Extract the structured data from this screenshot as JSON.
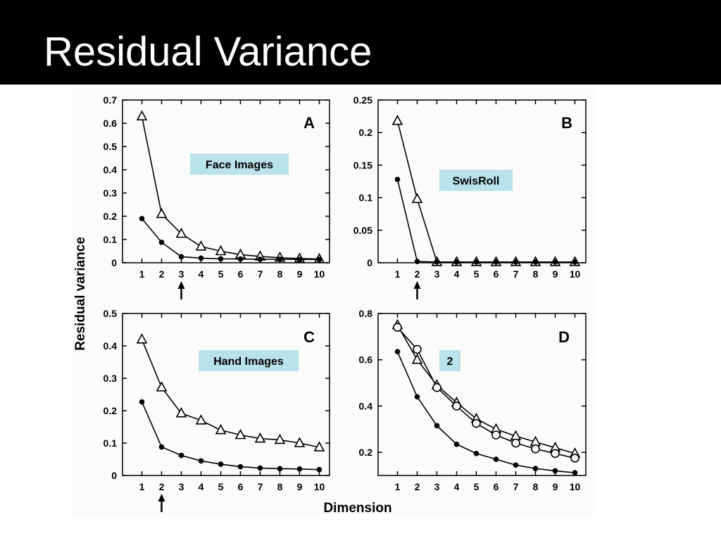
{
  "slide": {
    "title": "Residual Variance"
  },
  "colors": {
    "title_bar": "#000000",
    "title_text": "#ffffff",
    "callout_bg": "#b9e2ea",
    "ink": "#000000"
  },
  "figure": {
    "ylabel": "Residual variance",
    "xlabel": "Dimension"
  },
  "chart_data": [
    {
      "type": "line",
      "panel": "A",
      "callout": "Face Images",
      "x": [
        1,
        2,
        3,
        4,
        5,
        6,
        7,
        8,
        9,
        10
      ],
      "xticks": [
        "1",
        "2",
        "3",
        "4",
        "5",
        "6",
        "7",
        "8",
        "9",
        "10"
      ],
      "ylim": [
        0,
        0.7
      ],
      "yticks": [
        "0",
        "0.1",
        "0.2",
        "0.3",
        "0.4",
        "0.5",
        "0.6",
        "0.7"
      ],
      "arrow_at": 3,
      "series": [
        {
          "marker": "triangle",
          "values": [
            0.63,
            0.21,
            0.125,
            0.07,
            0.05,
            0.035,
            0.027,
            0.022,
            0.018,
            0.016
          ]
        },
        {
          "marker": "dot",
          "values": [
            0.19,
            0.088,
            0.026,
            0.02,
            0.017,
            0.016,
            0.015,
            0.015,
            0.014,
            0.014
          ]
        }
      ]
    },
    {
      "type": "line",
      "panel": "B",
      "callout": "SwisRoll",
      "x": [
        1,
        2,
        3,
        4,
        5,
        6,
        7,
        8,
        9,
        10
      ],
      "xticks": [
        "1",
        "2",
        "3",
        "4",
        "5",
        "6",
        "7",
        "8",
        "9",
        "10"
      ],
      "ylim": [
        0,
        0.25
      ],
      "yticks": [
        "0",
        "0.05",
        "0.1",
        "0.15",
        "0.2",
        "0.25"
      ],
      "arrow_at": 2,
      "series": [
        {
          "marker": "triangle",
          "values": [
            0.218,
            0.098,
            0.001,
            0.001,
            0.001,
            0.001,
            0.001,
            0.001,
            0.001,
            0.001
          ]
        },
        {
          "marker": "dot",
          "values": [
            0.128,
            0.002,
            0.001,
            0.001,
            0.001,
            0.001,
            0.001,
            0.001,
            0.001,
            0.001
          ]
        }
      ]
    },
    {
      "type": "line",
      "panel": "C",
      "callout": "Hand Images",
      "x": [
        1,
        2,
        3,
        4,
        5,
        6,
        7,
        8,
        9,
        10
      ],
      "xticks": [
        "1",
        "2",
        "3",
        "4",
        "5",
        "6",
        "7",
        "8",
        "9",
        "10"
      ],
      "ylim": [
        0,
        0.5
      ],
      "yticks": [
        "0",
        "0.1",
        "0.2",
        "0.3",
        "0.4",
        "0.5"
      ],
      "arrow_at": 2,
      "series": [
        {
          "marker": "triangle",
          "values": [
            0.42,
            0.272,
            0.192,
            0.17,
            0.14,
            0.125,
            0.114,
            0.11,
            0.1,
            0.087
          ]
        },
        {
          "marker": "dot",
          "values": [
            0.227,
            0.088,
            0.062,
            0.045,
            0.035,
            0.027,
            0.023,
            0.021,
            0.02,
            0.018
          ]
        }
      ]
    },
    {
      "type": "line",
      "panel": "D",
      "callout": "2",
      "x": [
        1,
        2,
        3,
        4,
        5,
        6,
        7,
        8,
        9,
        10
      ],
      "xticks": [
        "1",
        "2",
        "3",
        "4",
        "5",
        "6",
        "7",
        "8",
        "9",
        "10"
      ],
      "ylim": [
        0.1,
        0.8
      ],
      "yticks": [
        "0.2",
        "0.4",
        "0.6",
        "0.8"
      ],
      "arrow_at": null,
      "series": [
        {
          "marker": "triangle",
          "values": [
            0.75,
            0.6,
            0.49,
            0.415,
            0.345,
            0.3,
            0.27,
            0.245,
            0.22,
            0.195
          ]
        },
        {
          "marker": "circle",
          "values": [
            0.74,
            0.645,
            0.48,
            0.4,
            0.325,
            0.275,
            0.24,
            0.215,
            0.195,
            0.175
          ]
        },
        {
          "marker": "dot",
          "values": [
            0.635,
            0.44,
            0.315,
            0.235,
            0.195,
            0.17,
            0.145,
            0.13,
            0.12,
            0.112
          ]
        }
      ]
    }
  ]
}
